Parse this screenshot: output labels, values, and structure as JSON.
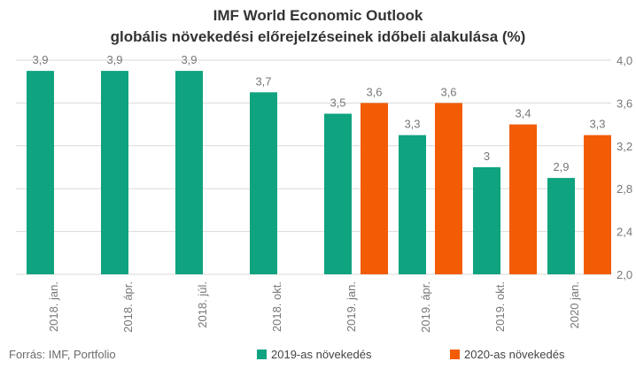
{
  "colors": {
    "s2019": "#0fa37f",
    "s2020": "#f25c05",
    "grid": "#d9d9d9",
    "label": "#777777"
  },
  "source": "Forrás: IMF, Portfolio",
  "chart_data": {
    "type": "bar",
    "title": "IMF World Economic Outlook",
    "subtitle": "globális növekedési előrejelzéseinek időbeli alakulása (%)",
    "categories": [
      "2018. jan.",
      "2018. ápr.",
      "2018. júl.",
      "2018. okt.",
      "2019. jan.",
      "2019. ápr.",
      "2019. okt.",
      "2020 jan."
    ],
    "series": [
      {
        "name": "2019-as növekedés",
        "values": [
          3.9,
          3.9,
          3.9,
          3.7,
          3.5,
          3.3,
          3.0,
          2.9
        ],
        "labels": [
          "3,9",
          "3,9",
          "3,9",
          "3,7",
          "3,5",
          "3,3",
          "3",
          "2,9"
        ]
      },
      {
        "name": "2020-as növekedés",
        "values": [
          null,
          null,
          null,
          null,
          3.6,
          3.6,
          3.4,
          3.3
        ],
        "labels": [
          "",
          "",
          "",
          "",
          "3,6",
          "3,6",
          "3,4",
          "3,3"
        ]
      }
    ],
    "ylim": [
      2.0,
      4.0
    ],
    "yticks": [
      2.0,
      2.4,
      2.8,
      3.2,
      3.6,
      4.0
    ],
    "ytick_labels": [
      "2,0",
      "2,4",
      "2,8",
      "3,2",
      "3,6",
      "4,0"
    ],
    "y_axis_side": "right",
    "grid": true,
    "legend": "bottom"
  }
}
